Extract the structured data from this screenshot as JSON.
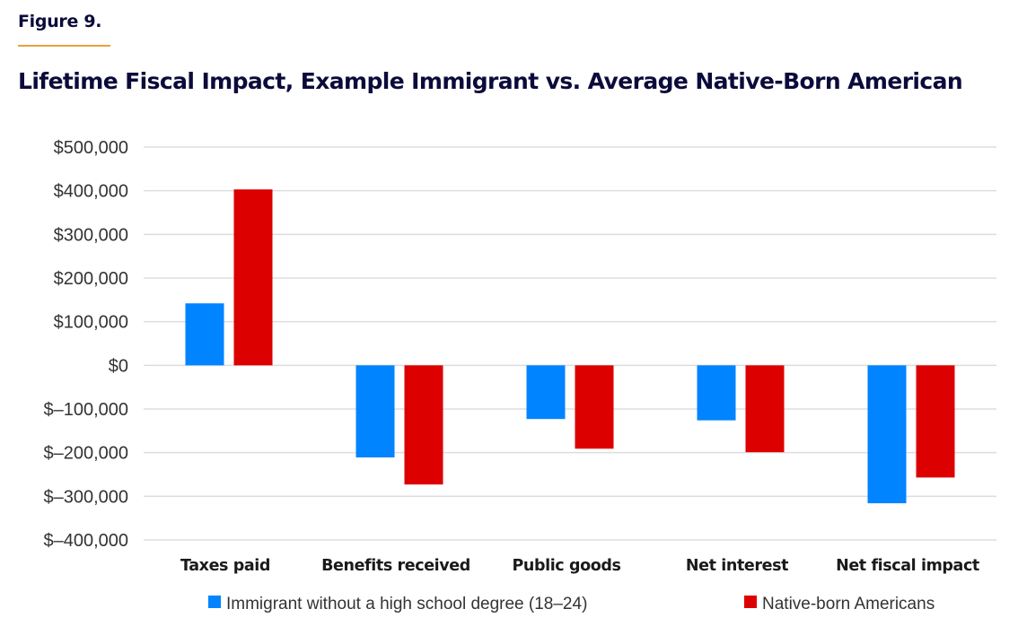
{
  "figure_label": "Figure 9.",
  "title": "Lifetime Fiscal Impact, Example Immigrant vs. Average Native-Born American",
  "colors": {
    "title": "#0b0b3b",
    "rule": "#e8a33d",
    "grid": "#dddddd",
    "immigrant": "#0084ff",
    "native": "#dd0000"
  },
  "chart_data": {
    "type": "bar",
    "title": "Lifetime Fiscal Impact, Example Immigrant vs. Average Native-Born American",
    "xlabel": "",
    "ylabel": "",
    "categories": [
      "Taxes paid",
      "Benefits received",
      "Public goods",
      "Net interest",
      "Net fiscal impact"
    ],
    "series": [
      {
        "name": "Immigrant without a high school degree (18–24)",
        "color": "#0084ff",
        "values": [
          142000,
          -211000,
          -123000,
          -126000,
          -316000
        ]
      },
      {
        "name": "Native-born Americans",
        "color": "#dd0000",
        "values": [
          403000,
          -273000,
          -191000,
          -199000,
          -257000
        ]
      }
    ],
    "ylim": [
      -400000,
      500000
    ],
    "yticks": [
      500000,
      400000,
      300000,
      200000,
      100000,
      0,
      -100000,
      -200000,
      -300000,
      -400000
    ],
    "ytick_labels": [
      "$500,000",
      "$400,000",
      "$300,000",
      "$200,000",
      "$100,000",
      "$0",
      "$–100,000",
      "$–200,000",
      "$–300,000",
      "$–400,000"
    ],
    "grid": true,
    "legend_position": "bottom"
  }
}
